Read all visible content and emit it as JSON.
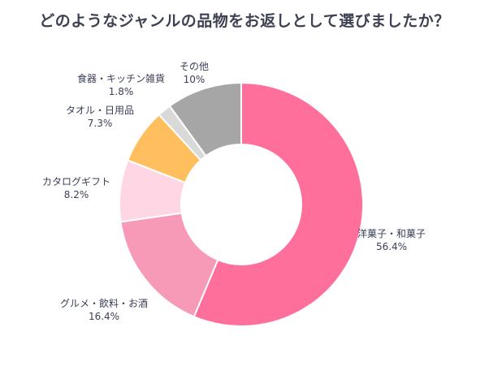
{
  "chart_data": {
    "type": "pie",
    "title": "どのようなジャンルの品物をお返しとして選びましたか？",
    "donut": true,
    "slices": [
      {
        "label": "洋菓子・和菓子",
        "value": 56.4,
        "value_label": "56.4%",
        "color": "#ff6f9c"
      },
      {
        "label": "グルメ・飲料・お酒",
        "value": 16.4,
        "value_label": "16.4%",
        "color": "#f79ab8"
      },
      {
        "label": "カタログギフト",
        "value": 8.2,
        "value_label": "8.2%",
        "color": "#ffd6e3"
      },
      {
        "label": "タオル・日用品",
        "value": 7.3,
        "value_label": "7.3%",
        "color": "#ffbf5e"
      },
      {
        "label": "食器・キッチン雑貨",
        "value": 1.8,
        "value_label": "1.8%",
        "color": "#d9d9d9"
      },
      {
        "label": "その他",
        "value": 10,
        "value_label": "10%",
        "color": "#a6a6a6"
      }
    ]
  }
}
